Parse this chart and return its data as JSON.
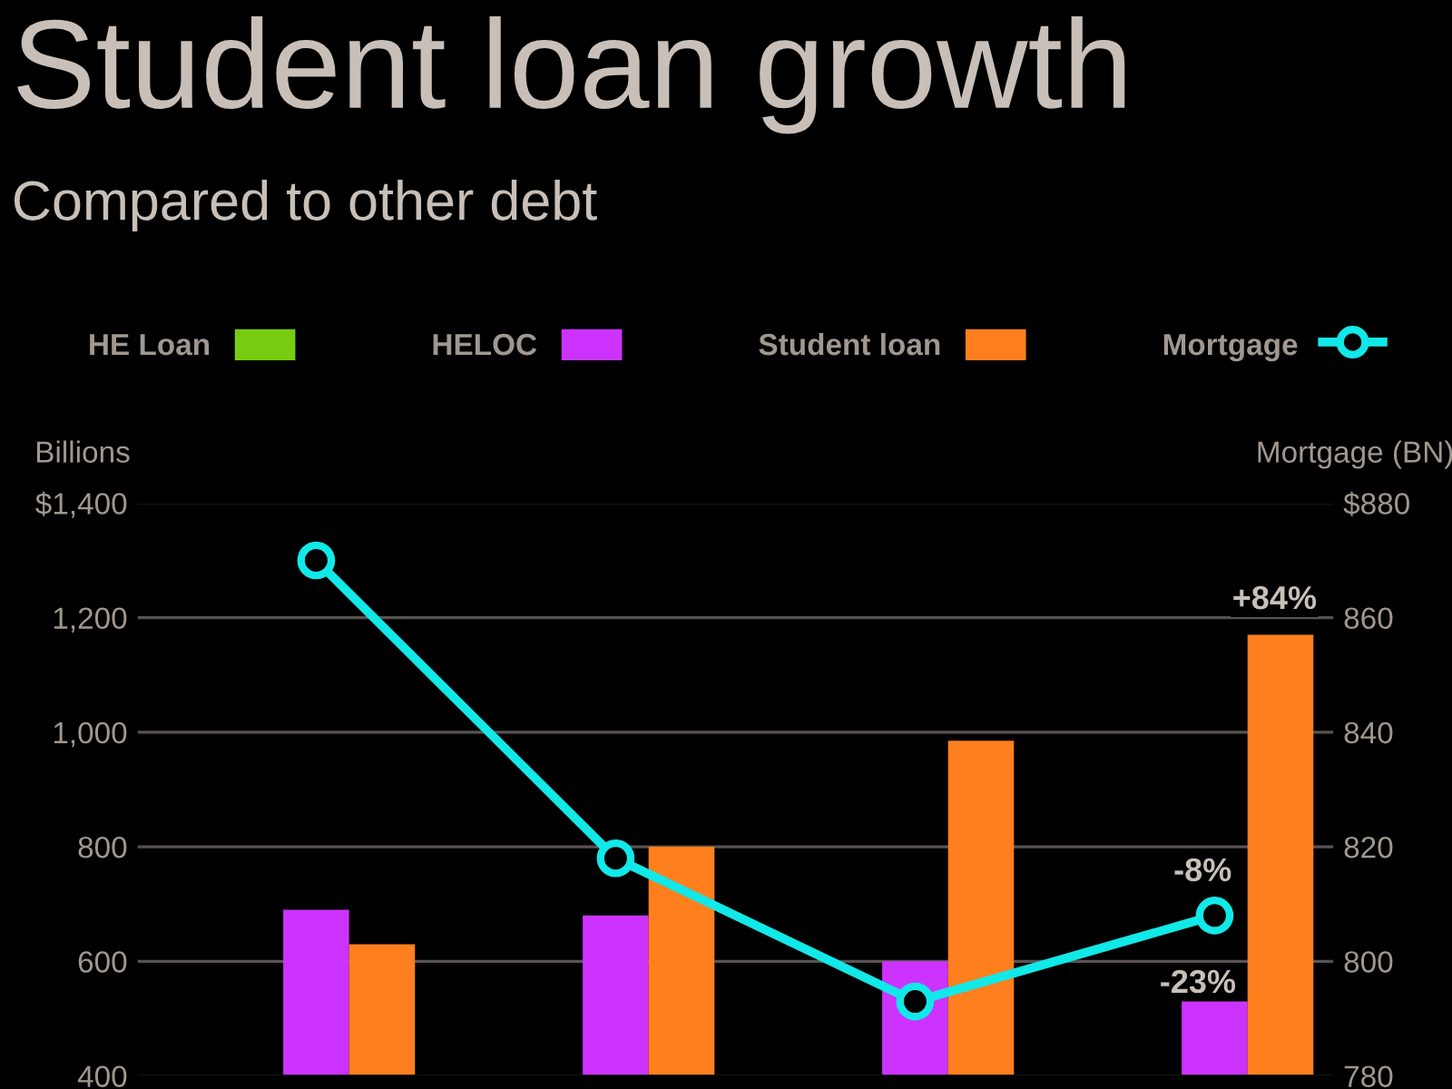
{
  "chart_data": {
    "type": "bar",
    "title": "Student loan growth",
    "subtitle": "Compared to other debt",
    "ylabel": "Billions",
    "y2label": "Mortgage (BN)",
    "categories": [
      null,
      null,
      null,
      null
    ],
    "series": [
      {
        "name": "HE Loan",
        "color": "#77cc11",
        "values": [
          null,
          null,
          null,
          null
        ]
      },
      {
        "name": "HELOC",
        "color": "#cc33ff",
        "values": [
          690,
          680,
          600,
          530
        ]
      },
      {
        "name": "Student loan",
        "color": "#ff7f1e",
        "values": [
          630,
          800,
          985,
          1170
        ]
      },
      {
        "name": "Mortgage",
        "type": "line",
        "axis": "y2",
        "color": "#11e8e8",
        "marker": "circle",
        "line_style": "solid",
        "values": [
          870,
          818,
          793,
          808
        ]
      }
    ],
    "annotations": [
      "+84%",
      "-8%",
      "-23%"
    ],
    "ylim": [
      400,
      1400
    ],
    "yticks": [
      400,
      600,
      800,
      {
        "value": 1000,
        "label": "1,000"
      },
      {
        "value": 1200,
        "label": "1,200"
      },
      {
        "value": 1400,
        "label": "$1,400"
      }
    ],
    "y2lim": [
      780,
      880
    ],
    "y2ticks": [
      780,
      800,
      820,
      840,
      860,
      {
        "value": 880,
        "label": "$880"
      }
    ],
    "grid": "y",
    "legend": "top"
  }
}
